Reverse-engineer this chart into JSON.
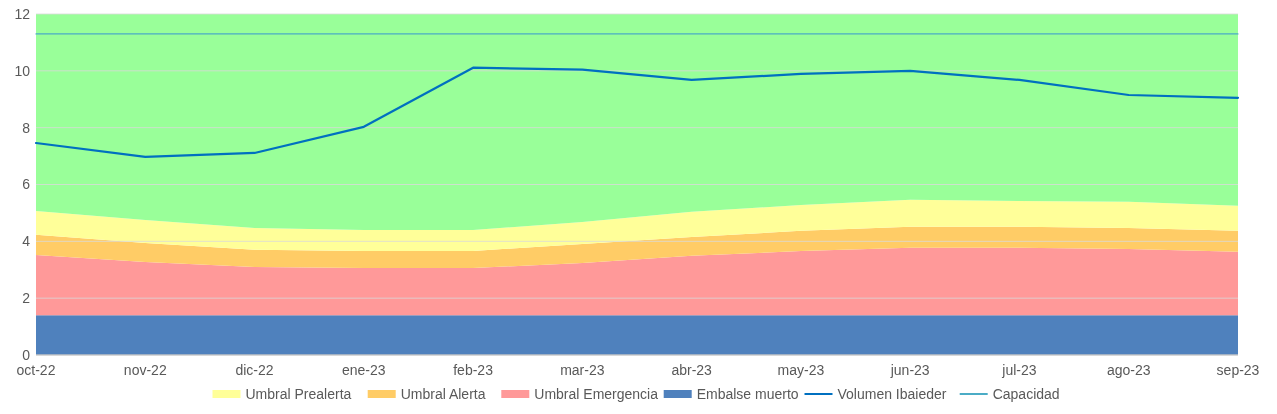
{
  "chart_data": {
    "type": "area",
    "stacked": true,
    "categories": [
      "oct-22",
      "nov-22",
      "dic-22",
      "ene-23",
      "feb-23",
      "mar-23",
      "abr-23",
      "may-23",
      "jun-23",
      "jul-23",
      "ago-23",
      "sep-23"
    ],
    "series": [
      {
        "name": "Embalse muerto",
        "color": "#4f81bd",
        "values": [
          1.4,
          1.4,
          1.4,
          1.4,
          1.4,
          1.4,
          1.4,
          1.4,
          1.4,
          1.4,
          1.4,
          1.4
        ]
      },
      {
        "name": "Umbral Emergencia",
        "color": "#ff9999",
        "values": [
          2.12,
          1.87,
          1.7,
          1.66,
          1.66,
          1.84,
          2.09,
          2.26,
          2.37,
          2.37,
          2.33,
          2.23
        ]
      },
      {
        "name": "Umbral Alerta",
        "color": "#ffcc66",
        "values": [
          0.71,
          0.67,
          0.6,
          0.6,
          0.6,
          0.67,
          0.66,
          0.71,
          0.74,
          0.74,
          0.74,
          0.74
        ]
      },
      {
        "name": "Umbral Prealerta",
        "color": "#ffff99",
        "values": [
          0.84,
          0.81,
          0.77,
          0.74,
          0.74,
          0.77,
          0.89,
          0.91,
          0.95,
          0.91,
          0.92,
          0.88
        ]
      },
      {
        "color": "#99ff99",
        "values": [
          6.93,
          7.25,
          7.53,
          7.6,
          7.6,
          7.32,
          6.96,
          6.72,
          6.54,
          6.58,
          6.61,
          6.75
        ]
      },
      {
        "name": "Volumen Ibaieder",
        "type": "line",
        "color": "#0070c0",
        "values": [
          7.46,
          6.97,
          7.11,
          8.03,
          10.11,
          10.04,
          9.68,
          9.89,
          10.0,
          9.68,
          9.15,
          9.05
        ]
      },
      {
        "name": "Capacidad",
        "type": "line",
        "color": "#4bacc6",
        "values": [
          11.3,
          11.3,
          11.3,
          11.3,
          11.3,
          11.3,
          11.3,
          11.3,
          11.3,
          11.3,
          11.3,
          11.3
        ]
      }
    ],
    "ylim": [
      0,
      12
    ],
    "yticks": [
      0,
      2,
      4,
      6,
      8,
      10,
      12
    ],
    "grid": "y",
    "legend": "bottom"
  }
}
